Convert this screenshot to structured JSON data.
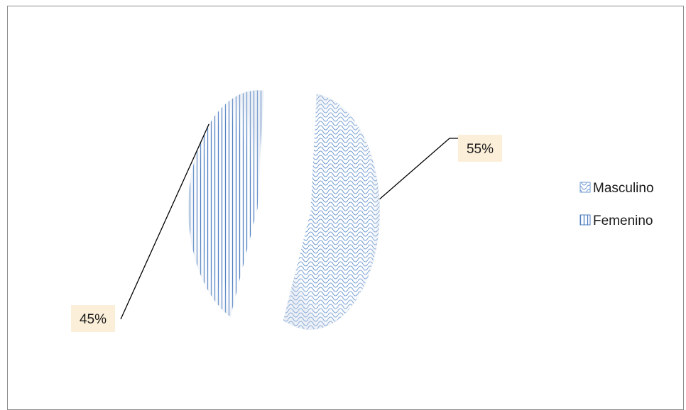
{
  "chart_data": {
    "type": "pie",
    "exploded": true,
    "categories": [
      "Masculino",
      "Femenino"
    ],
    "values": [
      55,
      45
    ],
    "data_labels": [
      "55%",
      "45%"
    ],
    "legend_position": "right",
    "series": [
      {
        "name": "Masculino",
        "value": 55,
        "label": "55%",
        "color": "#6f9ad1",
        "pattern": "scale"
      },
      {
        "name": "Femenino",
        "value": 45,
        "label": "45%",
        "color": "#4f7fc0",
        "pattern": "vertical-lines"
      }
    ],
    "colors": {
      "label_background": "#fcefd9",
      "leader_line": "#000000",
      "border": "#8c8c8c"
    }
  }
}
